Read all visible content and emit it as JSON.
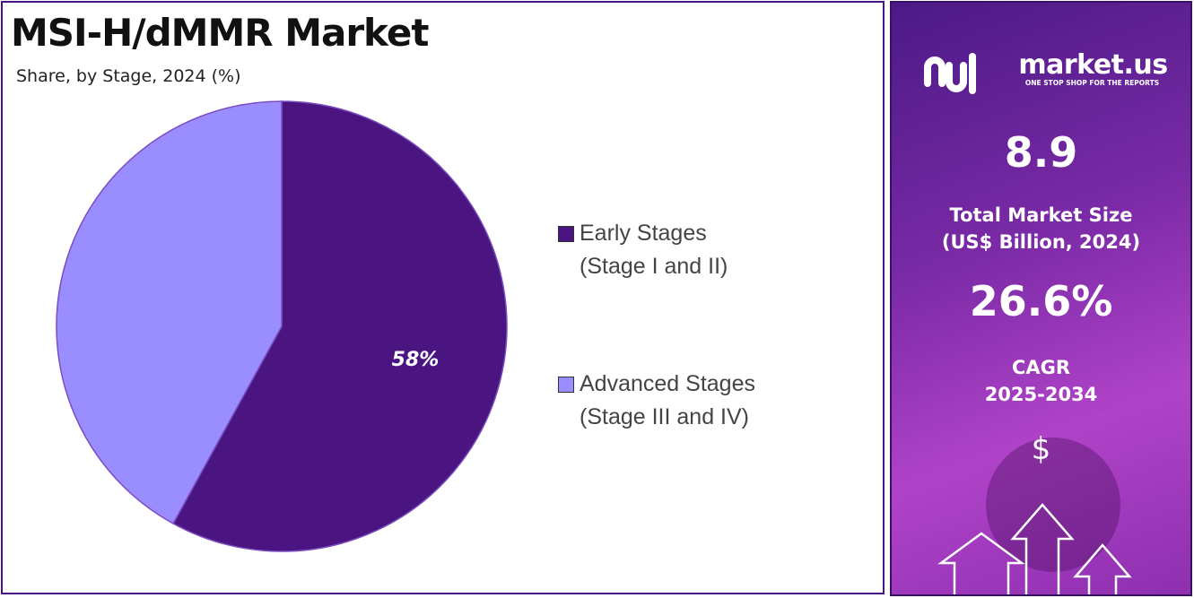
{
  "chart_data": {
    "type": "pie",
    "title": "MSI-H/dMMR Market",
    "subtitle": "Share, by Stage, 2024 (%)",
    "categories": [
      "Early Stages\n(Stage I and II)",
      "Advanced Stages\n(Stage III and IV)"
    ],
    "values": [
      58,
      42
    ],
    "value_labels": [
      "58%",
      null
    ],
    "colors": [
      "#4a1580",
      "#9a8dff"
    ]
  },
  "panel": {
    "logo": "market.us",
    "tagline": "ONE STOP SHOP FOR THE REPORTS",
    "market_size": "8.9",
    "market_size_label": "Total Market Size\n(US$ Billion, 2024)",
    "cagr": "26.6%",
    "cagr_label": "CAGR\n2025-2034",
    "currency": "$"
  }
}
